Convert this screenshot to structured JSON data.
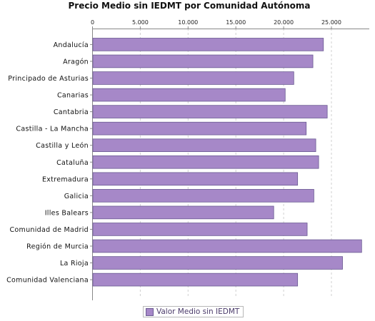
{
  "chart_data": {
    "type": "bar",
    "orientation": "horizontal",
    "title": "Precio Medio sin IEDMT por Comunidad Autónoma",
    "categories": [
      "Andalucía",
      "Aragón",
      "Principado de Asturias",
      "Canarias",
      "Cantabria",
      "Castilla - La Mancha",
      "Castilla y León",
      "Cataluña",
      "Extremadura",
      "Galicia",
      "Illes Balears",
      "Comunidad de Madrid",
      "Región de Murcia",
      "La Rioja",
      "Comunidad Valenciana"
    ],
    "series": [
      {
        "name": "Valor Medio sin IEDMT",
        "values": [
          24200,
          23100,
          21100,
          20200,
          24600,
          22400,
          23400,
          23700,
          21500,
          23200,
          19000,
          22500,
          28200,
          26200,
          21500
        ]
      }
    ],
    "xlim": [
      0,
      29000
    ],
    "tick_values": [
      0,
      5000,
      10000,
      15000,
      20000,
      25000
    ],
    "tick_labels": [
      "0",
      "5.000",
      "10.000",
      "15.000",
      "20.000",
      "25.000"
    ],
    "grid": "vertical dashed",
    "legend_position": "bottom",
    "colors": {
      "bar": "#a688c8",
      "bar_border": "#6a5a92"
    }
  }
}
